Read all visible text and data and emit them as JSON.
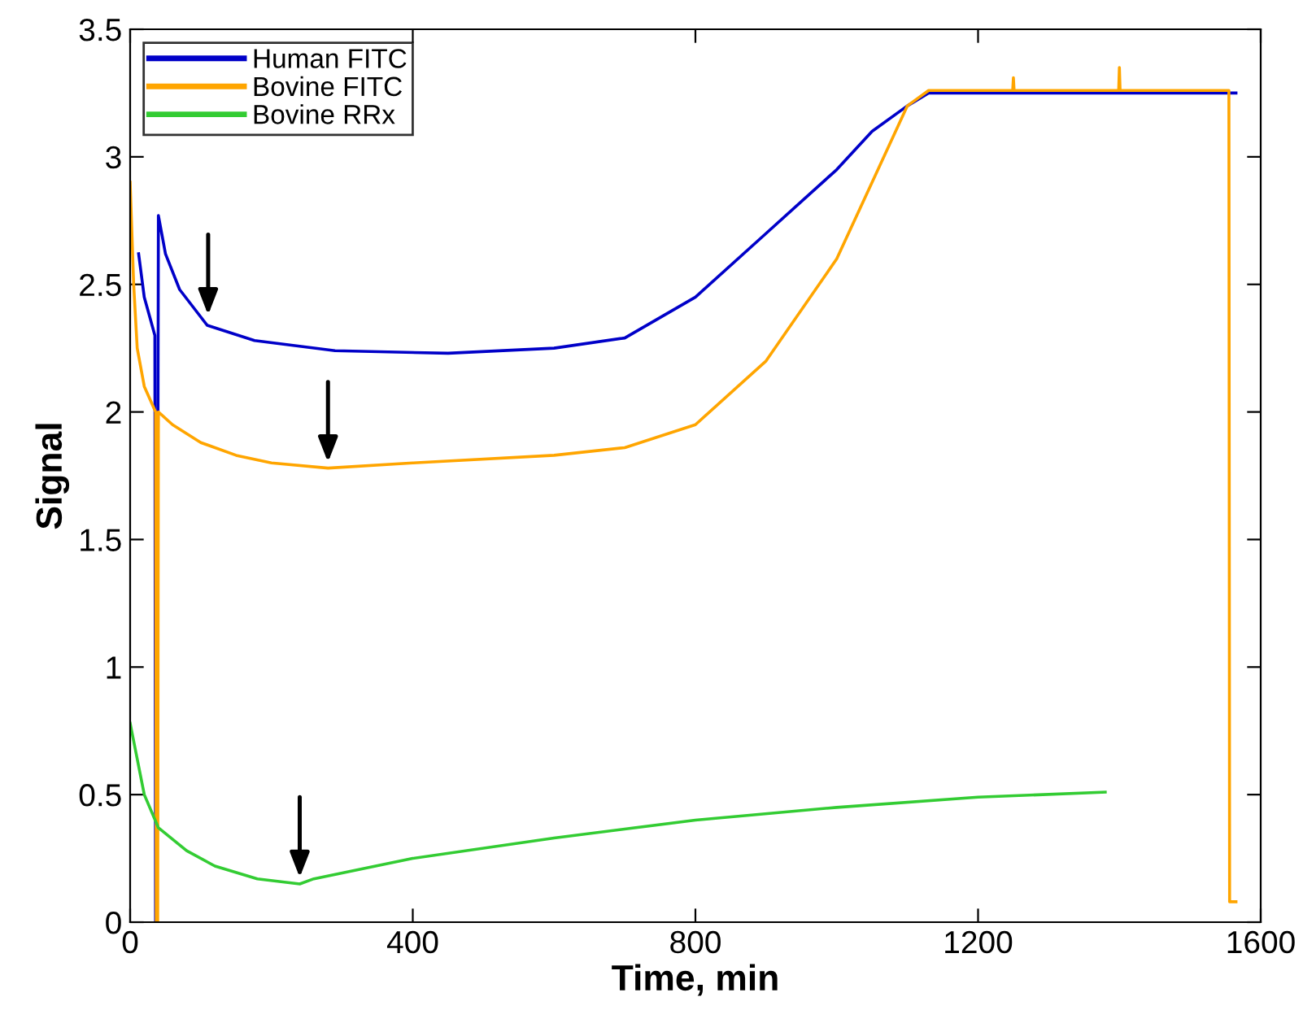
{
  "chart_data": {
    "type": "line",
    "xlabel": "Time, min",
    "ylabel": "Signal",
    "xlim": [
      0,
      1600
    ],
    "ylim": [
      0,
      3.5
    ],
    "xticks": [
      0,
      400,
      800,
      1200,
      1600
    ],
    "yticks": [
      0,
      {
        "value": 0.5,
        "label": "0.5"
      },
      1,
      {
        "value": 1.5,
        "label": "1.5"
      },
      2,
      {
        "value": 2.5,
        "label": "2.5"
      },
      3,
      {
        "value": 3.5,
        "label": "3.5"
      }
    ],
    "grid": false,
    "legend": "top left",
    "marker": "none",
    "line_style": "solid",
    "series": [
      {
        "name": "Human FITC",
        "color": "#0000c8",
        "x": [
          12,
          20,
          30,
          35,
          36,
          38,
          40,
          50,
          70,
          109,
          176,
          290,
          450,
          600,
          700,
          800,
          900,
          1000,
          1050,
          1100,
          1130,
          1250,
          1400,
          1565
        ],
        "values": [
          2.62,
          2.45,
          2.35,
          2.3,
          0,
          0,
          2.77,
          2.62,
          2.48,
          2.34,
          2.28,
          2.24,
          2.23,
          2.25,
          2.29,
          2.45,
          2.7,
          2.95,
          3.1,
          3.2,
          3.25,
          3.25,
          3.25,
          3.25
        ]
      },
      {
        "name": "Bovine FITC",
        "color": "#ffa500",
        "x": [
          0,
          5,
          10,
          20,
          36,
          37,
          39,
          40,
          60,
          100,
          150,
          200,
          280,
          400,
          600,
          700,
          800,
          900,
          1000,
          1050,
          1100,
          1130,
          1249,
          1250,
          1251,
          1399,
          1400,
          1401,
          1555,
          1556,
          1565
        ],
        "values": [
          2.9,
          2.5,
          2.25,
          2.1,
          2.0,
          0,
          0,
          2.0,
          1.95,
          1.88,
          1.83,
          1.8,
          1.78,
          1.8,
          1.83,
          1.86,
          1.95,
          2.2,
          2.6,
          2.9,
          3.2,
          3.26,
          3.26,
          3.31,
          3.26,
          3.26,
          3.35,
          3.26,
          3.26,
          0.08,
          0.08
        ]
      },
      {
        "name": "Bovine RRx",
        "color": "#33cc33",
        "x": [
          0,
          20,
          40,
          80,
          120,
          180,
          240,
          260,
          400,
          600,
          800,
          1000,
          1200,
          1380
        ],
        "values": [
          0.78,
          0.5,
          0.37,
          0.28,
          0.22,
          0.17,
          0.15,
          0.17,
          0.25,
          0.33,
          0.4,
          0.45,
          0.49,
          0.51
        ]
      }
    ]
  }
}
